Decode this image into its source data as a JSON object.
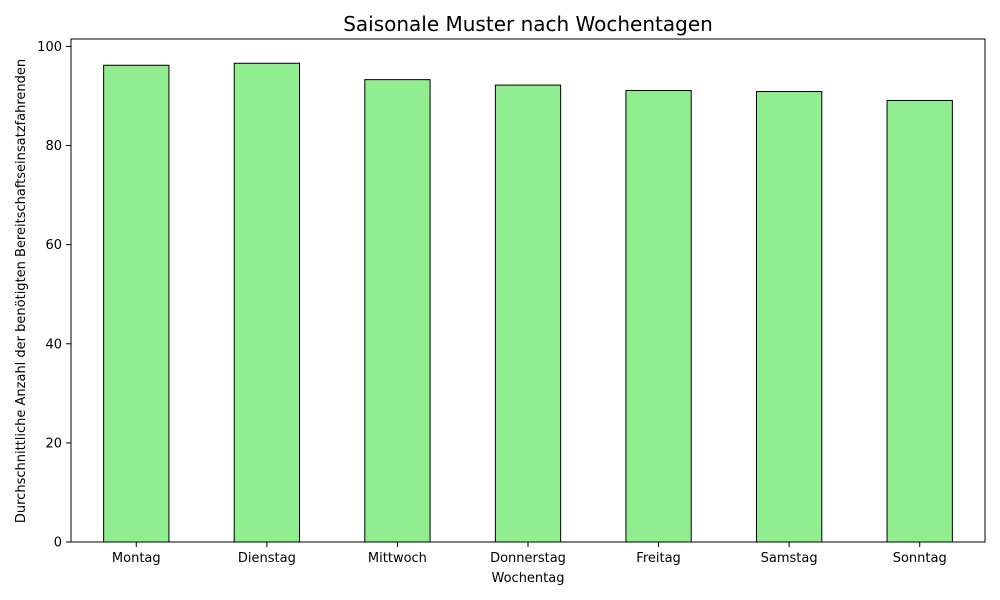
{
  "chart_data": {
    "type": "bar",
    "title": "Saisonale Muster nach Wochentagen",
    "xlabel": "Wochentag",
    "ylabel": "Durchschnittliche Anzahl der benötigten Bereitschaftseinsatzfahrenden",
    "categories": [
      "Montag",
      "Dienstag",
      "Mittwoch",
      "Donnerstag",
      "Freitag",
      "Samstag",
      "Sonntag"
    ],
    "values": [
      96.2,
      96.6,
      93.3,
      92.2,
      91.1,
      90.9,
      89.1
    ],
    "ylim": [
      0,
      101.5
    ],
    "yticks": [
      0,
      20,
      40,
      60,
      80,
      100
    ],
    "grid": false,
    "bar_color": "#90ee90",
    "edge_color": "#000000"
  }
}
